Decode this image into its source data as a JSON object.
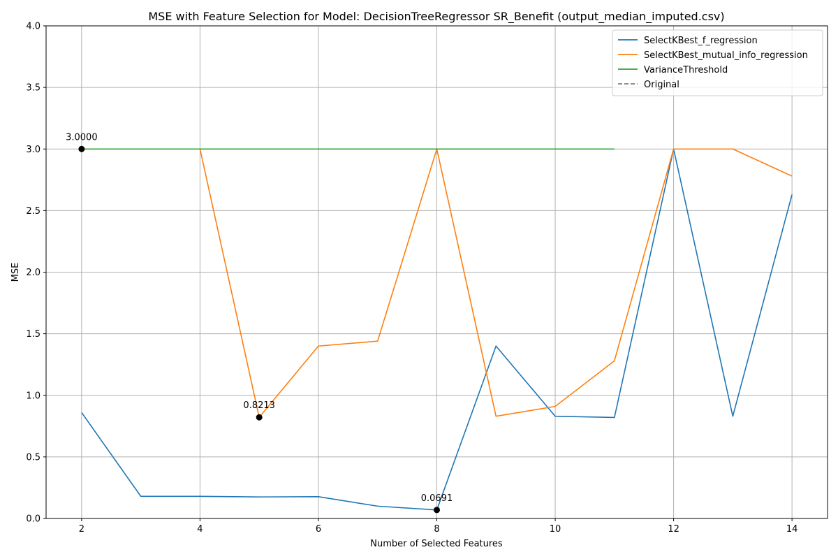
{
  "chart_data": {
    "type": "line",
    "title": "MSE with Feature Selection for Model: DecisionTreeRegressor SR_Benefit (output_median_imputed.csv)",
    "xlabel": "Number of Selected Features",
    "ylabel": "MSE",
    "xlim": [
      1.4,
      14.6
    ],
    "ylim": [
      0,
      4
    ],
    "xticks": [
      2,
      4,
      6,
      8,
      10,
      12,
      14
    ],
    "xtick_labels": [
      "2",
      "4",
      "6",
      "8",
      "10",
      "12",
      "14"
    ],
    "yticks": [
      0,
      0.5,
      1,
      1.5,
      2,
      2.5,
      3,
      3.5,
      4
    ],
    "ytick_labels": [
      "0.0",
      "0.5",
      "1.0",
      "1.5",
      "2.0",
      "2.5",
      "3.0",
      "3.5",
      "4.0"
    ],
    "grid": true,
    "legend_position": "top-right",
    "series": [
      {
        "name": "SelectKBest_f_regression",
        "color": "#1f77b4",
        "style": "solid",
        "x": [
          2,
          3,
          4,
          5,
          6,
          7,
          8,
          9,
          10,
          11,
          12,
          13,
          14
        ],
        "y": [
          0.86,
          0.18,
          0.18,
          0.175,
          0.177,
          0.1,
          0.0691,
          1.4,
          0.83,
          0.82,
          3.0,
          0.83,
          2.63
        ]
      },
      {
        "name": "SelectKBest_mutual_info_regression",
        "color": "#ff7f0e",
        "style": "solid",
        "x": [
          2,
          3,
          4,
          5,
          6,
          7,
          8,
          9,
          10,
          11,
          12,
          13,
          14
        ],
        "y": [
          3.0,
          3.0,
          3.0,
          0.8213,
          1.4,
          1.44,
          3.0,
          0.83,
          0.91,
          1.28,
          3.0,
          3.0,
          2.78
        ]
      },
      {
        "name": "VarianceThreshold",
        "color": "#2ca02c",
        "style": "solid",
        "x": [
          2,
          3,
          4,
          5,
          6,
          7,
          8,
          9,
          10,
          11
        ],
        "y": [
          3.0,
          3.0,
          3.0,
          3.0,
          3.0,
          3.0,
          3.0,
          3.0,
          3.0,
          3.0
        ]
      },
      {
        "name": "Original",
        "color": "#808080",
        "style": "dashed",
        "x": [],
        "y": []
      }
    ],
    "annotations": [
      {
        "x": 2,
        "y": 3.0,
        "label": "3.0000"
      },
      {
        "x": 5,
        "y": 0.8213,
        "label": "0.8213"
      },
      {
        "x": 8,
        "y": 0.0691,
        "label": "0.0691"
      }
    ]
  }
}
